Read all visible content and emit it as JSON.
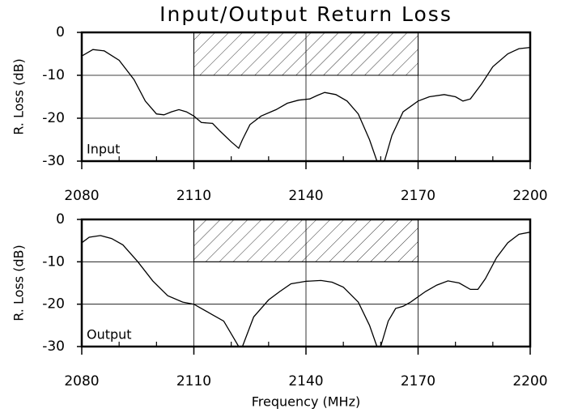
{
  "chart_data": [
    {
      "type": "line",
      "title": "Input/Output Return Loss",
      "ylabel": "R. Loss (dB)",
      "annotation": "Input",
      "xlim": [
        2080,
        2200
      ],
      "xticks": [
        2080,
        2110,
        2140,
        2170,
        2200
      ],
      "xminorticks": [
        2090,
        2100,
        2120,
        2130,
        2150,
        2160,
        2180,
        2190
      ],
      "ylim": [
        -30,
        0
      ],
      "yticks": [
        -30,
        -20,
        -10,
        0
      ],
      "grid": true,
      "band": {
        "x": [
          2110,
          2170
        ],
        "y": [
          -10,
          0
        ]
      },
      "series": [
        {
          "color": "#000000",
          "x": [
            2080,
            2083,
            2086,
            2090,
            2094,
            2097,
            2100,
            2102,
            2104,
            2106,
            2108,
            2110,
            2112,
            2115,
            2117,
            2120,
            2122,
            2123,
            2125,
            2128,
            2132,
            2135,
            2138,
            2141,
            2143,
            2145,
            2148,
            2151,
            2154,
            2157,
            2159,
            2160,
            2161,
            2163,
            2166,
            2170,
            2173,
            2177,
            2180,
            2182,
            2184,
            2187,
            2190,
            2194,
            2197,
            2200
          ],
          "values": [
            -5.5,
            -4,
            -4.3,
            -6.5,
            -11,
            -16,
            -19,
            -19.2,
            -18.5,
            -18,
            -18.5,
            -19.5,
            -21,
            -21.2,
            -23,
            -25.5,
            -27,
            -25,
            -21.5,
            -19.5,
            -18,
            -16.5,
            -15.8,
            -15.5,
            -14.7,
            -14,
            -14.5,
            -16,
            -19,
            -25,
            -30,
            null,
            -30,
            -24,
            -18.5,
            -16,
            -15,
            -14.5,
            -15,
            -16,
            -15.5,
            -12,
            -8,
            -5,
            -3.8,
            -3.5
          ]
        }
      ]
    },
    {
      "type": "line",
      "xlabel": "Frequency (MHz)",
      "ylabel": "R. Loss (dB)",
      "annotation": "Output",
      "xlim": [
        2080,
        2200
      ],
      "xticks": [
        2080,
        2110,
        2140,
        2170,
        2200
      ],
      "xminorticks": [
        2090,
        2100,
        2120,
        2130,
        2150,
        2160,
        2180,
        2190
      ],
      "ylim": [
        -30,
        0
      ],
      "yticks": [
        -30,
        -20,
        -10,
        0
      ],
      "grid": true,
      "band": {
        "x": [
          2110,
          2170
        ],
        "y": [
          -10,
          0
        ]
      },
      "series": [
        {
          "color": "#000000",
          "x": [
            2080,
            2082,
            2085,
            2088,
            2091,
            2095,
            2099,
            2103,
            2107,
            2110,
            2112,
            2115,
            2118,
            2120,
            2122,
            2122.5,
            2123,
            2126,
            2130,
            2133,
            2136,
            2140,
            2144,
            2147,
            2150,
            2154,
            2157,
            2159,
            2159.5,
            2160,
            2162,
            2164,
            2166,
            2168,
            2172,
            2175,
            2178,
            2181,
            2184,
            2186,
            2188,
            2191,
            2194,
            2197,
            2200
          ],
          "values": [
            -5.5,
            -4.2,
            -3.8,
            -4.5,
            -6,
            -10,
            -14.5,
            -18,
            -19.5,
            -20,
            -21,
            -22.5,
            -24,
            -27,
            -30,
            null,
            -30,
            -23,
            -19,
            -17,
            -15.2,
            -14.6,
            -14.4,
            -14.8,
            -16,
            -19.5,
            -25,
            -30,
            null,
            -30,
            -24,
            -21,
            -20.5,
            -19.5,
            -17,
            -15.5,
            -14.5,
            -15,
            -16.5,
            -16.5,
            -14,
            -9,
            -5.5,
            -3.5,
            -3
          ]
        }
      ]
    }
  ]
}
